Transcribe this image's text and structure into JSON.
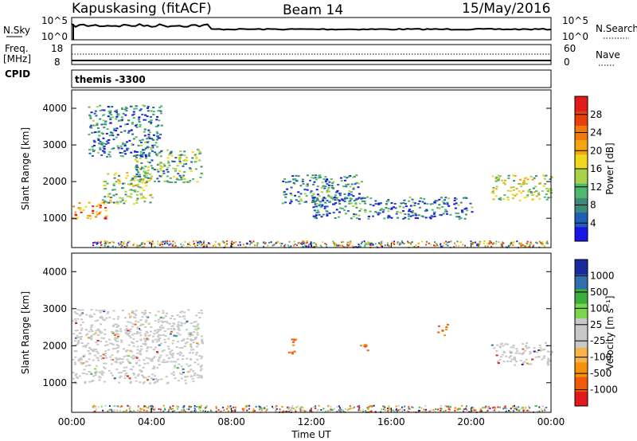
{
  "header": {
    "station": "Kapuskasing (fitACF)",
    "beam": "Beam 14",
    "date": "15/May/2016"
  },
  "noise_panel": {
    "left_label": "N.Sky",
    "left_ticks": [
      "10^5",
      "10^0"
    ],
    "right_label": "N.Search",
    "right_ticks": [
      "10^5",
      "10^0"
    ]
  },
  "freq_panel": {
    "left_label_1": "Freq.",
    "left_label_2": "[MHz]",
    "left_ticks": [
      "18",
      "8"
    ],
    "right_label": "Nave",
    "right_ticks": [
      "60",
      "0"
    ],
    "cpid_label": "CPID"
  },
  "cpid_panel": {
    "text": "themis -3300"
  },
  "colors": {
    "power_scale": [
      "#1a14e6",
      "#1f5fb8",
      "#3c8a7a",
      "#4fb870",
      "#a7d24a",
      "#f0d81e",
      "#f5a50f",
      "#f07a0c",
      "#e8400c",
      "#e31a1c"
    ],
    "velocity_scale": [
      "#e31a1c",
      "#f05a0a",
      "#f5910d",
      "#f8b44a",
      "#c8c8c8",
      "#c8c8c8",
      "#7bd64b",
      "#3cae3c",
      "#2f6faf",
      "#1a2a9c"
    ],
    "ground_scatter": "#c8c8c8"
  },
  "chart_data": [
    {
      "type": "heatmap",
      "name": "power-panel",
      "title": "",
      "xlabel": "",
      "ylabel": "Slant Range [km]",
      "xlim": [
        "00:00",
        "24:00"
      ],
      "ylim": [
        200,
        4500
      ],
      "x_ticks": [
        "00:00",
        "04:00",
        "08:00",
        "12:00",
        "16:00",
        "20:00",
        "00:00"
      ],
      "y_ticks": [
        "1000",
        "2000",
        "3000",
        "4000"
      ],
      "colorbar": {
        "label": "Power [dB]",
        "ticks": [
          "4",
          "8",
          "12",
          "16",
          "20",
          "24",
          "28"
        ],
        "range": [
          0,
          30
        ]
      },
      "features": [
        {
          "t_start": 0.0,
          "t_end": 1.8,
          "range_start": 1000,
          "range_end": 1450,
          "value": 22
        },
        {
          "t_start": 1.5,
          "t_end": 4.0,
          "range_start": 1400,
          "range_end": 2300,
          "value": 12
        },
        {
          "t_start": 3.0,
          "t_end": 6.5,
          "range_start": 2000,
          "range_end": 2900,
          "value": 10
        },
        {
          "t_start": 0.8,
          "t_end": 4.5,
          "range_start": 2700,
          "range_end": 4100,
          "value": 6
        },
        {
          "t_start": 10.5,
          "t_end": 14.5,
          "range_start": 1400,
          "range_end": 2200,
          "value": 8
        },
        {
          "t_start": 12.0,
          "t_end": 20.0,
          "range_start": 1000,
          "range_end": 1600,
          "value": 6
        },
        {
          "t_start": 21.0,
          "t_end": 24.0,
          "range_start": 1500,
          "range_end": 2200,
          "value": 14
        }
      ]
    },
    {
      "type": "heatmap",
      "name": "velocity-panel",
      "title": "",
      "xlabel": "Time UT",
      "ylabel": "Slant Range [km]",
      "xlim": [
        "00:00",
        "24:00"
      ],
      "ylim": [
        200,
        4500
      ],
      "x_ticks": [
        "00:00",
        "04:00",
        "08:00",
        "12:00",
        "16:00",
        "20:00",
        "00:00"
      ],
      "y_ticks": [
        "1000",
        "2000",
        "3000",
        "4000"
      ],
      "colorbar": {
        "label": "Velocity [m s⁻¹]",
        "ticks": [
          "1000",
          "500",
          "100",
          "25",
          "-25",
          "-100",
          "-500",
          "-1000"
        ]
      },
      "features": [
        {
          "t_start": 0.0,
          "t_end": 6.5,
          "range_start": 1000,
          "range_end": 3000,
          "value": 0
        },
        {
          "t_start": 10.8,
          "t_end": 11.3,
          "range_start": 1800,
          "range_end": 2200,
          "value": -300
        },
        {
          "t_start": 14.4,
          "t_end": 14.8,
          "range_start": 1800,
          "range_end": 2100,
          "value": -300
        },
        {
          "t_start": 18.3,
          "t_end": 18.8,
          "range_start": 2300,
          "range_end": 2600,
          "value": -300
        },
        {
          "t_start": 21.0,
          "t_end": 24.0,
          "range_start": 1500,
          "range_end": 2100,
          "value": 0
        }
      ]
    }
  ]
}
